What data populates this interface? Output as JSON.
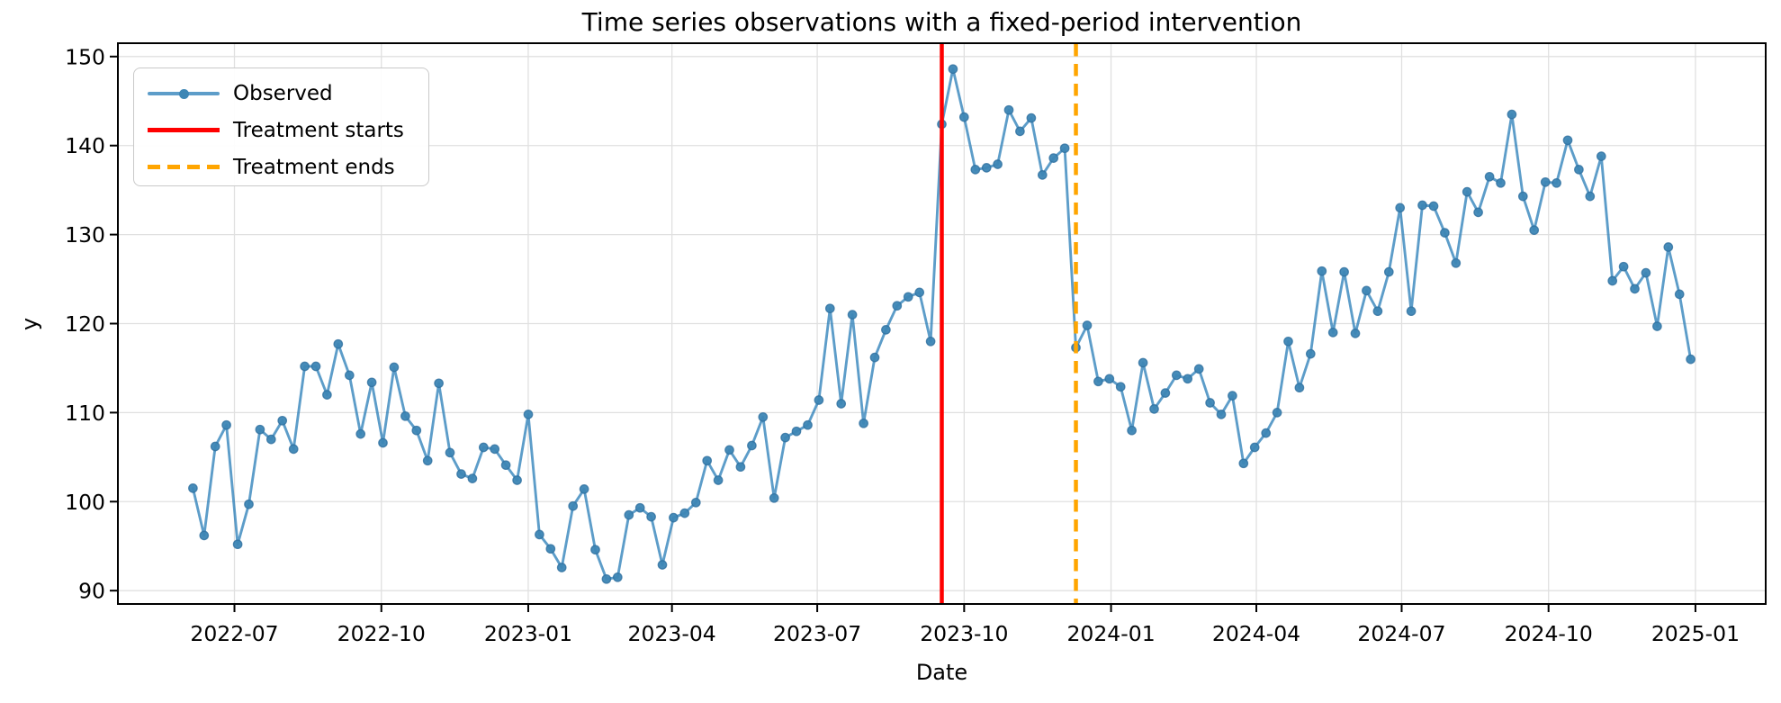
{
  "figure": {
    "title": "Time series observations with a fixed-period intervention",
    "xlabel": "Date",
    "ylabel": "y"
  },
  "legend": {
    "position": "upper left",
    "items": [
      {
        "label": "Observed",
        "type": "line-marker",
        "color": "#1f77b4"
      },
      {
        "label": "Treatment starts",
        "type": "solid",
        "color": "#ff0000"
      },
      {
        "label": "Treatment ends",
        "type": "dashed",
        "color": "#ffa500"
      }
    ]
  },
  "chart_data": {
    "type": "line",
    "title": "Time series observations with a fixed-period intervention",
    "xlabel": "Date",
    "ylabel": "y",
    "grid": true,
    "legend_position": "upper left",
    "ylim": [
      88.5,
      151.5
    ],
    "xlim_dates": [
      "2022-04-19",
      "2025-02-14"
    ],
    "y_ticks": [
      90,
      100,
      110,
      120,
      130,
      140,
      150
    ],
    "x_ticks": [
      {
        "date": "2022-07-01",
        "label": "2022-07"
      },
      {
        "date": "2022-10-01",
        "label": "2022-10"
      },
      {
        "date": "2023-01-01",
        "label": "2023-01"
      },
      {
        "date": "2023-04-01",
        "label": "2023-04"
      },
      {
        "date": "2023-07-01",
        "label": "2023-07"
      },
      {
        "date": "2023-10-01",
        "label": "2023-10"
      },
      {
        "date": "2024-01-01",
        "label": "2024-01"
      },
      {
        "date": "2024-04-01",
        "label": "2024-04"
      },
      {
        "date": "2024-07-01",
        "label": "2024-07"
      },
      {
        "date": "2024-10-01",
        "label": "2024-10"
      },
      {
        "date": "2025-01-01",
        "label": "2025-01"
      }
    ],
    "interventions": [
      {
        "name": "Treatment starts",
        "date": "2023-09-17",
        "color": "#ff0000",
        "style": "solid"
      },
      {
        "name": "Treatment ends",
        "date": "2023-12-10",
        "color": "#ffa500",
        "style": "dashed"
      }
    ],
    "style": {
      "line_color": "#1f77b4",
      "line_alpha": 0.72,
      "marker_fill": "#3d86b5",
      "marker_edge": "#2e6f9f",
      "grid_color": "#e0e0e0",
      "spine_color": "#000000",
      "treatment_start_color": "#ff0000",
      "treatment_end_color": "#ffa500"
    },
    "series": [
      {
        "name": "Observed",
        "frequency": "weekly",
        "dates": [
          "2022-06-05",
          "2022-06-12",
          "2022-06-19",
          "2022-06-26",
          "2022-07-03",
          "2022-07-10",
          "2022-07-17",
          "2022-07-24",
          "2022-07-31",
          "2022-08-07",
          "2022-08-14",
          "2022-08-21",
          "2022-08-28",
          "2022-09-04",
          "2022-09-11",
          "2022-09-18",
          "2022-09-25",
          "2022-10-02",
          "2022-10-09",
          "2022-10-16",
          "2022-10-23",
          "2022-10-30",
          "2022-11-06",
          "2022-11-13",
          "2022-11-20",
          "2022-11-27",
          "2022-12-04",
          "2022-12-11",
          "2022-12-18",
          "2022-12-25",
          "2023-01-01",
          "2023-01-08",
          "2023-01-15",
          "2023-01-22",
          "2023-01-29",
          "2023-02-05",
          "2023-02-12",
          "2023-02-19",
          "2023-02-26",
          "2023-03-05",
          "2023-03-12",
          "2023-03-19",
          "2023-03-26",
          "2023-04-02",
          "2023-04-09",
          "2023-04-16",
          "2023-04-23",
          "2023-04-30",
          "2023-05-07",
          "2023-05-14",
          "2023-05-21",
          "2023-05-28",
          "2023-06-04",
          "2023-06-11",
          "2023-06-18",
          "2023-06-25",
          "2023-07-02",
          "2023-07-09",
          "2023-07-16",
          "2023-07-23",
          "2023-07-30",
          "2023-08-06",
          "2023-08-13",
          "2023-08-20",
          "2023-08-27",
          "2023-09-03",
          "2023-09-10",
          "2023-09-17",
          "2023-09-24",
          "2023-10-01",
          "2023-10-08",
          "2023-10-15",
          "2023-10-22",
          "2023-10-29",
          "2023-11-05",
          "2023-11-12",
          "2023-11-19",
          "2023-11-26",
          "2023-12-03",
          "2023-12-10",
          "2023-12-17",
          "2023-12-24",
          "2023-12-31",
          "2024-01-07",
          "2024-01-14",
          "2024-01-21",
          "2024-01-28",
          "2024-02-04",
          "2024-02-11",
          "2024-02-18",
          "2024-02-25",
          "2024-03-03",
          "2024-03-10",
          "2024-03-17",
          "2024-03-24",
          "2024-03-31",
          "2024-04-07",
          "2024-04-14",
          "2024-04-21",
          "2024-04-28",
          "2024-05-05",
          "2024-05-12",
          "2024-05-19",
          "2024-05-26",
          "2024-06-02",
          "2024-06-09",
          "2024-06-16",
          "2024-06-23",
          "2024-06-30",
          "2024-07-07",
          "2024-07-14",
          "2024-07-21",
          "2024-07-28",
          "2024-08-04",
          "2024-08-11",
          "2024-08-18",
          "2024-08-25",
          "2024-09-01",
          "2024-09-08",
          "2024-09-15",
          "2024-09-22",
          "2024-09-29",
          "2024-10-06",
          "2024-10-13",
          "2024-10-20",
          "2024-10-27",
          "2024-11-03",
          "2024-11-10",
          "2024-11-17",
          "2024-11-24",
          "2024-12-01",
          "2024-12-08",
          "2024-12-15",
          "2024-12-22",
          "2024-12-29"
        ],
        "values": [
          101.5,
          96.2,
          106.2,
          108.6,
          95.2,
          99.7,
          108.1,
          107.0,
          109.1,
          105.9,
          115.2,
          115.2,
          112.0,
          117.7,
          114.2,
          107.6,
          113.4,
          106.6,
          115.1,
          109.6,
          108.0,
          104.6,
          113.3,
          105.5,
          103.1,
          102.6,
          106.1,
          105.9,
          104.1,
          102.4,
          109.8,
          96.3,
          94.7,
          92.6,
          99.5,
          101.4,
          94.6,
          91.3,
          91.5,
          98.5,
          99.3,
          98.3,
          92.9,
          98.2,
          98.7,
          99.9,
          104.6,
          102.4,
          105.8,
          103.9,
          106.3,
          109.5,
          100.4,
          107.2,
          107.9,
          108.6,
          111.4,
          121.7,
          111.0,
          121.0,
          108.8,
          116.2,
          119.3,
          122.0,
          123.0,
          123.5,
          118.0,
          142.4,
          148.6,
          143.2,
          137.3,
          137.5,
          137.9,
          144.0,
          141.6,
          143.1,
          136.7,
          138.6,
          139.7,
          117.3,
          119.8,
          113.5,
          113.8,
          112.9,
          108.0,
          115.6,
          110.4,
          112.2,
          114.2,
          113.8,
          114.9,
          111.1,
          109.8,
          111.9,
          104.3,
          106.1,
          107.7,
          110.0,
          118.0,
          112.8,
          116.6,
          125.9,
          119.0,
          125.8,
          118.9,
          123.7,
          121.4,
          125.8,
          133.0,
          121.4,
          133.3,
          133.2,
          130.2,
          126.8,
          134.8,
          132.5,
          136.5,
          135.8,
          143.5,
          134.3,
          130.5,
          135.9,
          135.8,
          140.6,
          137.3,
          134.3,
          138.8,
          124.8,
          126.4,
          123.9,
          125.7,
          119.7,
          128.6,
          123.3,
          116.0
        ]
      }
    ]
  }
}
